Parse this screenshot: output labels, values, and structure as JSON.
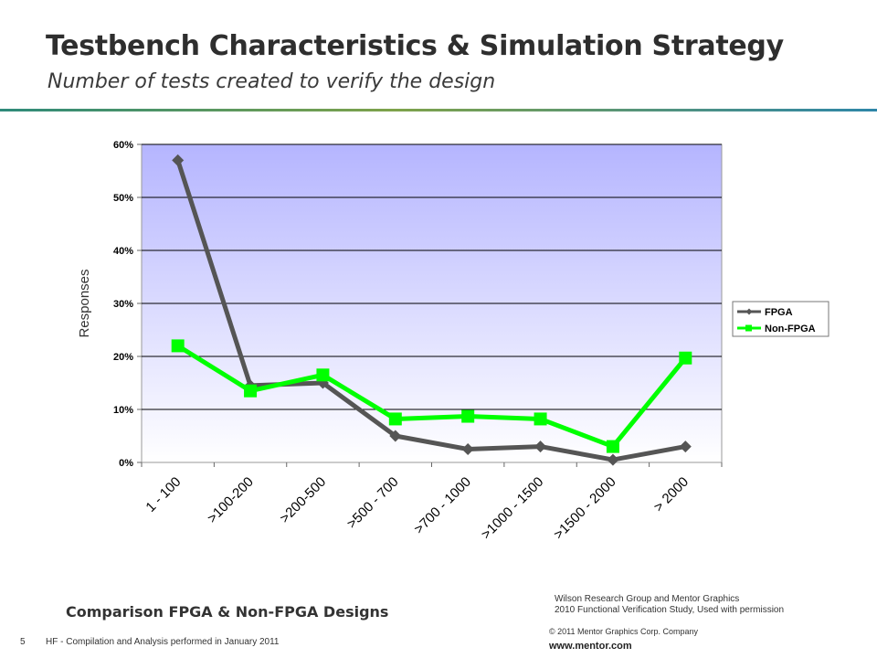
{
  "slide": {
    "title": "Testbench Characteristics & Simulation Strategy",
    "subtitle": "Number of tests created to verify the design",
    "caption": "Comparison FPGA & Non-FPGA Designs",
    "source_line1": "Wilson Research Group and Mentor Graphics",
    "source_line2": "2010 Functional Verification Study,  Used with permission",
    "page_number": "5",
    "footer_note": "HF - Compilation and Analysis performed in January 2011",
    "copyright": "© 2011 Mentor Graphics Corp. Company",
    "url": "www.mentor.com"
  },
  "chart_data": {
    "type": "line",
    "title": "",
    "xlabel": "",
    "ylabel": "Responses",
    "categories": [
      "1 - 100",
      ">100-200",
      ">200-500",
      ">500 - 700",
      ">700 - 1000",
      ">1000 - 1500",
      ">1500 - 2000",
      "> 2000"
    ],
    "ylim": [
      0,
      60
    ],
    "yticks": [
      "0%",
      "10%",
      "20%",
      "30%",
      "40%",
      "50%",
      "60%"
    ],
    "grid": true,
    "legend_position": "right",
    "series": [
      {
        "name": "FPGA",
        "color": "#555555",
        "marker": "diamond",
        "values": [
          57,
          14.5,
          15,
          5,
          2.5,
          3,
          0.5,
          3
        ]
      },
      {
        "name": "Non-FPGA",
        "color": "#00ff00",
        "marker": "square",
        "values": [
          22,
          13.5,
          16.5,
          8.2,
          8.7,
          8.2,
          3,
          19.7
        ]
      }
    ]
  }
}
